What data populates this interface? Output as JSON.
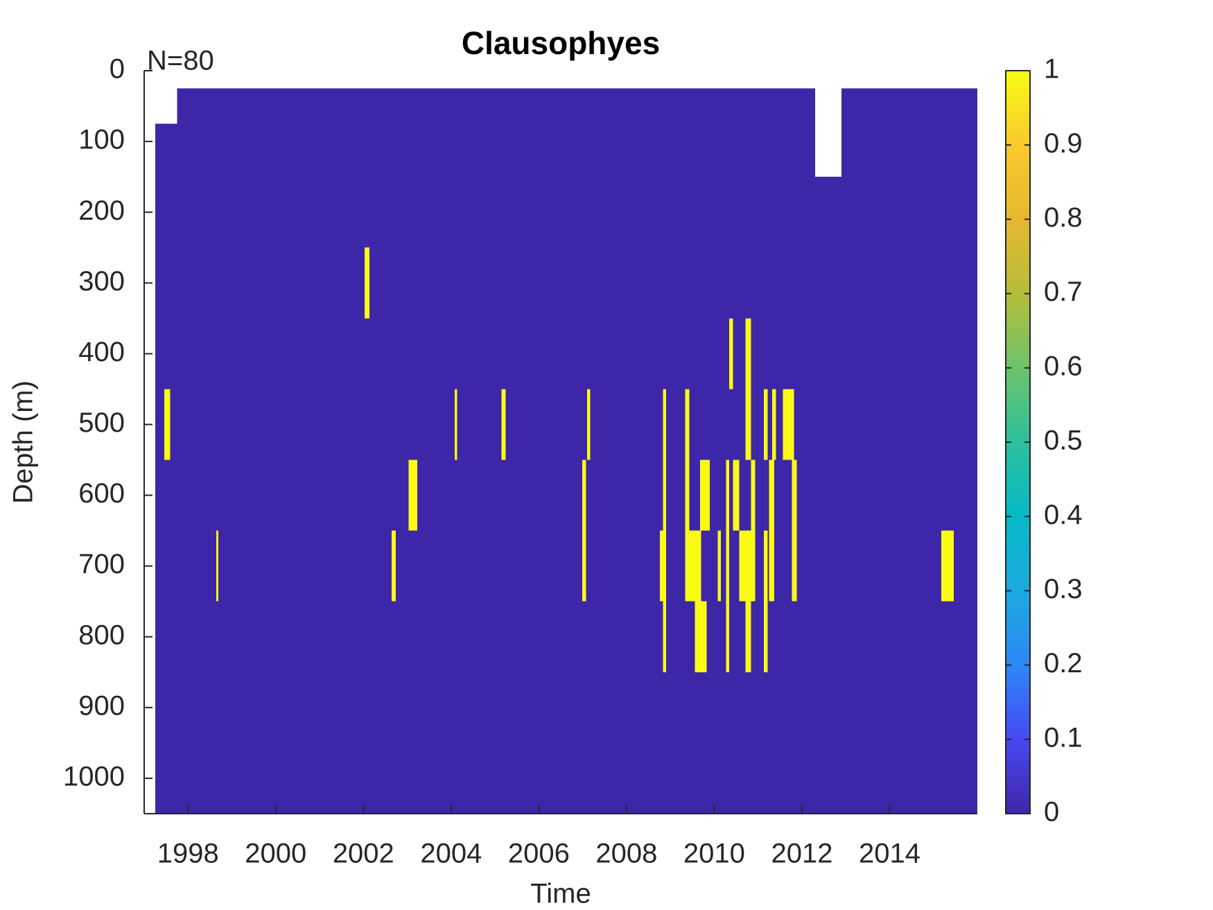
{
  "chart_data": {
    "type": "heatmap",
    "title": "Clausophyes",
    "annotation": "N=80",
    "x_label": "Time",
    "y_label": "Depth (m)",
    "xlim": [
      1997,
      2016
    ],
    "xticks": [
      1998,
      2000,
      2002,
      2004,
      2006,
      2008,
      2010,
      2012,
      2014
    ],
    "ylim": [
      0,
      1050
    ],
    "yticks": [
      0,
      100,
      200,
      300,
      400,
      500,
      600,
      700,
      800,
      900,
      1000
    ],
    "y_reversed": true,
    "colorbar_lim": [
      0,
      1
    ],
    "colorbar_ticks": [
      0,
      0.1,
      0.2,
      0.3,
      0.4,
      0.5,
      0.6,
      0.7,
      0.8,
      0.9,
      1
    ],
    "colormap": [
      "#3e26a8",
      "#4748f3",
      "#2d87f7",
      "#1ca9df",
      "#06b9c5",
      "#2cc09d",
      "#6cc36b",
      "#b5bd3a",
      "#e5b82f",
      "#fac92b",
      "#f9fb15"
    ],
    "cells": [
      {
        "x": [
          1997.25,
          1997.75
        ],
        "y": [
          75,
          1050
        ],
        "value": 0
      },
      {
        "x": [
          1997.75,
          2012.3
        ],
        "y": [
          25,
          1050
        ],
        "value": 0
      },
      {
        "x": [
          2012.3,
          2012.9
        ],
        "y": [
          150,
          1050
        ],
        "value": 0
      },
      {
        "x": [
          2012.9,
          2016
        ],
        "y": [
          25,
          1050
        ],
        "value": 0
      },
      {
        "x": [
          1997.46,
          1997.59
        ],
        "y": [
          450,
          550
        ],
        "value": 1
      },
      {
        "x": [
          1998.64,
          1998.69
        ],
        "y": [
          650,
          750
        ],
        "value": 1
      },
      {
        "x": [
          2002.03,
          2002.14
        ],
        "y": [
          250,
          350
        ],
        "value": 1
      },
      {
        "x": [
          2002.64,
          2002.74
        ],
        "y": [
          650,
          750
        ],
        "value": 1
      },
      {
        "x": [
          2003.03,
          2003.23
        ],
        "y": [
          550,
          650
        ],
        "value": 1
      },
      {
        "x": [
          2004.08,
          2004.14
        ],
        "y": [
          450,
          550
        ],
        "value": 1
      },
      {
        "x": [
          2005.15,
          2005.24
        ],
        "y": [
          450,
          550
        ],
        "value": 1
      },
      {
        "x": [
          2006.99,
          2007.08
        ],
        "y": [
          550,
          750
        ],
        "value": 1
      },
      {
        "x": [
          2007.1,
          2007.17
        ],
        "y": [
          450,
          550
        ],
        "value": 1
      },
      {
        "x": [
          2008.76,
          2008.86
        ],
        "y": [
          650,
          750
        ],
        "value": 1
      },
      {
        "x": [
          2008.83,
          2008.9
        ],
        "y": [
          450,
          850
        ],
        "value": 1
      },
      {
        "x": [
          2009.34,
          2009.43
        ],
        "y": [
          450,
          650
        ],
        "value": 1
      },
      {
        "x": [
          2009.34,
          2009.7
        ],
        "y": [
          650,
          750
        ],
        "value": 1
      },
      {
        "x": [
          2009.56,
          2009.83
        ],
        "y": [
          750,
          850
        ],
        "value": 1
      },
      {
        "x": [
          2009.68,
          2009.9
        ],
        "y": [
          550,
          650
        ],
        "value": 1
      },
      {
        "x": [
          2010.08,
          2010.15
        ],
        "y": [
          650,
          750
        ],
        "value": 1
      },
      {
        "x": [
          2010.27,
          2010.34
        ],
        "y": [
          550,
          850
        ],
        "value": 1
      },
      {
        "x": [
          2010.34,
          2010.43
        ],
        "y": [
          350,
          450
        ],
        "value": 1
      },
      {
        "x": [
          2010.43,
          2010.57
        ],
        "y": [
          550,
          650
        ],
        "value": 1
      },
      {
        "x": [
          2010.57,
          2010.93
        ],
        "y": [
          650,
          750
        ],
        "value": 1
      },
      {
        "x": [
          2010.71,
          2010.84
        ],
        "y": [
          350,
          550
        ],
        "value": 1
      },
      {
        "x": [
          2010.71,
          2010.84
        ],
        "y": [
          750,
          850
        ],
        "value": 1
      },
      {
        "x": [
          2010.84,
          2010.93
        ],
        "y": [
          550,
          650
        ],
        "value": 1
      },
      {
        "x": [
          2011.13,
          2011.22
        ],
        "y": [
          450,
          550
        ],
        "value": 1
      },
      {
        "x": [
          2011.13,
          2011.22
        ],
        "y": [
          650,
          850
        ],
        "value": 1
      },
      {
        "x": [
          2011.25,
          2011.37
        ],
        "y": [
          550,
          750
        ],
        "value": 1
      },
      {
        "x": [
          2011.32,
          2011.41
        ],
        "y": [
          450,
          550
        ],
        "value": 1
      },
      {
        "x": [
          2011.57,
          2011.82
        ],
        "y": [
          450,
          550
        ],
        "value": 1
      },
      {
        "x": [
          2011.77,
          2011.88
        ],
        "y": [
          550,
          750
        ],
        "value": 1
      },
      {
        "x": [
          2015.18,
          2015.46
        ],
        "y": [
          650,
          750
        ],
        "value": 1
      }
    ]
  }
}
